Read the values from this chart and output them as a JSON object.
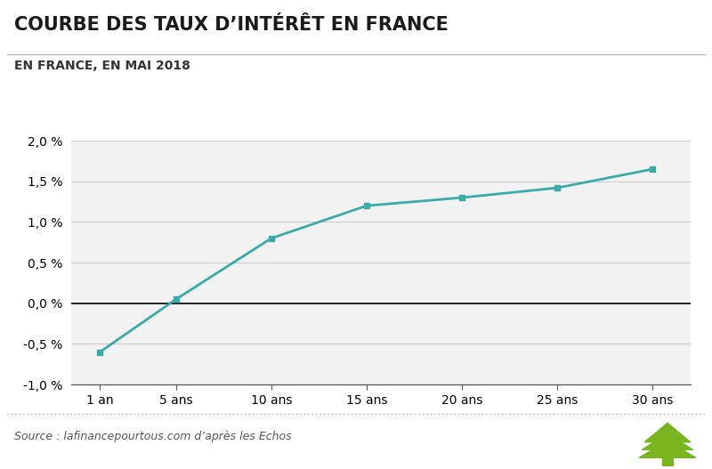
{
  "title": "COURBE DES TAUX D’INTÉRÊT EN FRANCE",
  "subtitle": "EN FRANCE, EN MAI 2018",
  "source": "Source : lafinancepourtous.com d’après les Echos",
  "x_labels": [
    "1 an",
    "5 ans",
    "10 ans",
    "15 ans",
    "20 ans",
    "25 ans",
    "30 ans"
  ],
  "x_values": [
    1,
    5,
    10,
    15,
    20,
    25,
    30
  ],
  "y_values": [
    -0.6,
    0.05,
    0.8,
    1.2,
    1.3,
    1.42,
    1.65
  ],
  "line_color": "#3aabab",
  "marker_color": "#3aabab",
  "background_color": "#ffffff",
  "plot_bg_color": "#f2f2f2",
  "ylim": [
    -1.0,
    2.0
  ],
  "yticks": [
    -1.0,
    -0.5,
    0.0,
    0.5,
    1.0,
    1.5,
    2.0
  ],
  "grid_color": "#cccccc",
  "zero_line_color": "#000000",
  "title_fontsize": 15,
  "subtitle_fontsize": 10,
  "tick_fontsize": 10,
  "source_fontsize": 9,
  "tree_color": "#7ab520"
}
